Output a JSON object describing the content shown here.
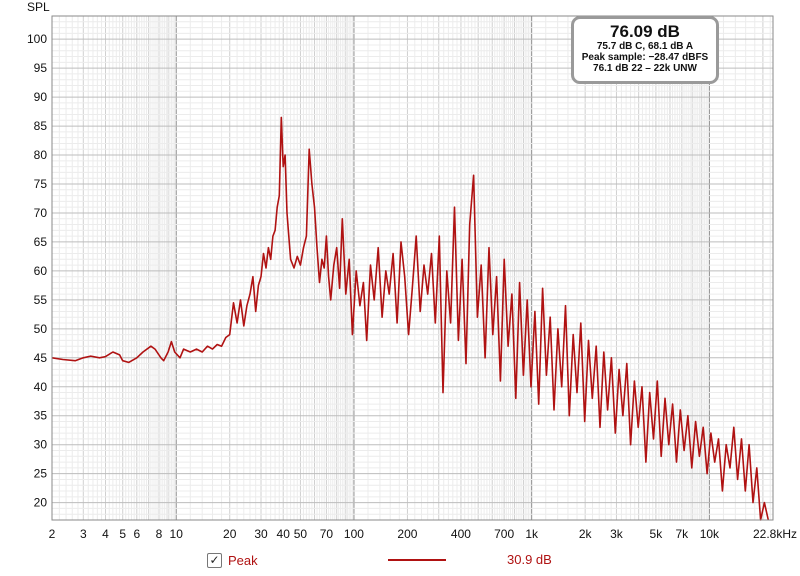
{
  "chart_data": {
    "type": "line",
    "ylabel": "SPL",
    "xlabel": "",
    "xscale": "log",
    "xlim": [
      2,
      22800
    ],
    "ylim": [
      17,
      104
    ],
    "y_ticks": [
      20,
      25,
      30,
      35,
      40,
      45,
      50,
      55,
      60,
      65,
      70,
      75,
      80,
      85,
      90,
      95,
      100
    ],
    "x_ticks": [
      {
        "v": 2,
        "label": "2"
      },
      {
        "v": 3,
        "label": "3"
      },
      {
        "v": 4,
        "label": "4"
      },
      {
        "v": 5,
        "label": "5"
      },
      {
        "v": 6,
        "label": "6"
      },
      {
        "v": 8,
        "label": "8"
      },
      {
        "v": 10,
        "label": "10"
      },
      {
        "v": 20,
        "label": "20"
      },
      {
        "v": 30,
        "label": "30"
      },
      {
        "v": 40,
        "label": "40"
      },
      {
        "v": 50,
        "label": "50"
      },
      {
        "v": 70,
        "label": "70"
      },
      {
        "v": 100,
        "label": "100"
      },
      {
        "v": 200,
        "label": "200"
      },
      {
        "v": 400,
        "label": "400"
      },
      {
        "v": 700,
        "label": "700"
      },
      {
        "v": 1000,
        "label": "1k"
      },
      {
        "v": 2000,
        "label": "2k"
      },
      {
        "v": 3000,
        "label": "3k"
      },
      {
        "v": 5000,
        "label": "5k"
      },
      {
        "v": 7000,
        "label": "7k"
      },
      {
        "v": 10000,
        "label": "10k"
      },
      {
        "v": 22800,
        "label": "22.8kHz"
      }
    ],
    "grid": true,
    "series": [
      {
        "name": "Peak",
        "color": "#b01212",
        "points": [
          [
            2,
            45.0
          ],
          [
            2.3,
            44.7
          ],
          [
            2.7,
            44.5
          ],
          [
            3.0,
            45.0
          ],
          [
            3.3,
            45.3
          ],
          [
            3.7,
            45.0
          ],
          [
            4.0,
            45.2
          ],
          [
            4.4,
            46.0
          ],
          [
            4.8,
            45.5
          ],
          [
            5.0,
            44.5
          ],
          [
            5.4,
            44.2
          ],
          [
            6.0,
            45.0
          ],
          [
            6.5,
            46.0
          ],
          [
            7.2,
            47.0
          ],
          [
            7.6,
            46.5
          ],
          [
            8.2,
            45.0
          ],
          [
            8.5,
            44.5
          ],
          [
            9.0,
            46.0
          ],
          [
            9.4,
            47.8
          ],
          [
            9.8,
            46.0
          ],
          [
            10.5,
            45.0
          ],
          [
            11.0,
            46.5
          ],
          [
            12.0,
            46.0
          ],
          [
            13.0,
            46.5
          ],
          [
            14.0,
            46.0
          ],
          [
            15.0,
            47.0
          ],
          [
            16.0,
            46.5
          ],
          [
            17.0,
            47.3
          ],
          [
            18.0,
            47.0
          ],
          [
            19.0,
            48.5
          ],
          [
            20.0,
            49.0
          ],
          [
            21.0,
            54.5
          ],
          [
            22.0,
            51.0
          ],
          [
            23.0,
            55.0
          ],
          [
            24.0,
            50.5
          ],
          [
            25.0,
            54.0
          ],
          [
            26.0,
            56.0
          ],
          [
            27.0,
            59.0
          ],
          [
            28.0,
            53.0
          ],
          [
            29.0,
            57.5
          ],
          [
            30.0,
            59.0
          ],
          [
            31.0,
            63.0
          ],
          [
            32.0,
            60.5
          ],
          [
            33.0,
            64.0
          ],
          [
            34.0,
            62.0
          ],
          [
            35.0,
            66.0
          ],
          [
            36.0,
            67.0
          ],
          [
            37.0,
            71.0
          ],
          [
            38.0,
            73.0
          ],
          [
            39.0,
            86.5
          ],
          [
            40.0,
            78.0
          ],
          [
            41.0,
            80.0
          ],
          [
            42.0,
            70.0
          ],
          [
            44.0,
            62.0
          ],
          [
            46.0,
            60.5
          ],
          [
            48.0,
            62.5
          ],
          [
            50.0,
            61.0
          ],
          [
            52.0,
            64.0
          ],
          [
            54.0,
            66.0
          ],
          [
            56.0,
            81.0
          ],
          [
            58.0,
            75.0
          ],
          [
            60.0,
            71.0
          ],
          [
            62.0,
            64.0
          ],
          [
            64.0,
            58.0
          ],
          [
            66.0,
            62.0
          ],
          [
            68.0,
            60.5
          ],
          [
            70.0,
            66.0
          ],
          [
            72.0,
            59.0
          ],
          [
            74.0,
            55.0
          ],
          [
            77.0,
            61.0
          ],
          [
            80.0,
            64.0
          ],
          [
            83.0,
            57.0
          ],
          [
            86.0,
            69.0
          ],
          [
            90.0,
            56.0
          ],
          [
            94.0,
            62.0
          ],
          [
            98.0,
            49.0
          ],
          [
            103.0,
            60.0
          ],
          [
            108.0,
            54.0
          ],
          [
            113.0,
            58.0
          ],
          [
            118.0,
            48.0
          ],
          [
            124.0,
            61.0
          ],
          [
            130.0,
            55.0
          ],
          [
            137.0,
            64.0
          ],
          [
            144.0,
            52.0
          ],
          [
            151.0,
            60.0
          ],
          [
            158.0,
            56.0
          ],
          [
            166.0,
            63.0
          ],
          [
            175.0,
            51.0
          ],
          [
            184.0,
            65.0
          ],
          [
            193.0,
            59.0
          ],
          [
            203.0,
            49.0
          ],
          [
            213.0,
            57.0
          ],
          [
            224.0,
            66.0
          ],
          [
            236.0,
            53.0
          ],
          [
            248.0,
            61.0
          ],
          [
            260.0,
            56.0
          ],
          [
            273.0,
            63.0
          ],
          [
            287.0,
            51.0
          ],
          [
            302.0,
            66.0
          ],
          [
            317.0,
            39.0
          ],
          [
            333.0,
            60.0
          ],
          [
            350.0,
            51.0
          ],
          [
            368.0,
            71.0
          ],
          [
            387.0,
            48.0
          ],
          [
            406.0,
            62.0
          ],
          [
            427.0,
            44.0
          ],
          [
            448.0,
            68.0
          ],
          [
            471.0,
            76.5
          ],
          [
            495.0,
            52.0
          ],
          [
            520.0,
            61.0
          ],
          [
            547.0,
            45.0
          ],
          [
            575.0,
            64.0
          ],
          [
            604.0,
            49.0
          ],
          [
            635.0,
            59.0
          ],
          [
            667.0,
            41.0
          ],
          [
            701.0,
            62.0
          ],
          [
            737.0,
            47.0
          ],
          [
            774.0,
            56.0
          ],
          [
            814.0,
            38.0
          ],
          [
            855.0,
            58.0
          ],
          [
            899.0,
            42.0
          ],
          [
            944.0,
            55.0
          ],
          [
            992.0,
            40.0
          ],
          [
            1043.0,
            53.0
          ],
          [
            1096.0,
            37.0
          ],
          [
            1152.0,
            57.0
          ],
          [
            1210.0,
            42.0
          ],
          [
            1272.0,
            52.0
          ],
          [
            1336.0,
            36.0
          ],
          [
            1404.0,
            50.0
          ],
          [
            1476.0,
            40.0
          ],
          [
            1551.0,
            54.0
          ],
          [
            1629.0,
            35.0
          ],
          [
            1712.0,
            49.0
          ],
          [
            1799.0,
            39.0
          ],
          [
            1891.0,
            51.0
          ],
          [
            1987.0,
            34.0
          ],
          [
            2088.0,
            48.0
          ],
          [
            2194.0,
            38.0
          ],
          [
            2306.0,
            47.0
          ],
          [
            2423.0,
            33.0
          ],
          [
            2546.0,
            46.0
          ],
          [
            2675.0,
            36.0
          ],
          [
            2811.0,
            45.0
          ],
          [
            2954.0,
            32.0
          ],
          [
            3104.0,
            43.0
          ],
          [
            3262.0,
            35.0
          ],
          [
            3428.0,
            44.0
          ],
          [
            3602.0,
            30.0
          ],
          [
            3785.0,
            41.0
          ],
          [
            3977.0,
            33.0
          ],
          [
            4179.0,
            40.0
          ],
          [
            4391.0,
            27.0
          ],
          [
            4614.0,
            39.0
          ],
          [
            4849.0,
            31.0
          ],
          [
            5095.0,
            41.0
          ],
          [
            5354.0,
            28.0
          ],
          [
            5626.0,
            38.0
          ],
          [
            5911.0,
            30.0
          ],
          [
            6212.0,
            37.0
          ],
          [
            6527.0,
            27.0
          ],
          [
            6859.0,
            36.0
          ],
          [
            7207.0,
            29.0
          ],
          [
            7573.0,
            35.0
          ],
          [
            7958.0,
            26.0
          ],
          [
            8362.0,
            34.0
          ],
          [
            8787.0,
            28.0
          ],
          [
            9233.0,
            33.0
          ],
          [
            9702.0,
            25.0
          ],
          [
            10195.0,
            32.0
          ],
          [
            10713.0,
            27.0
          ],
          [
            11257.0,
            31.0
          ],
          [
            11829.0,
            22.0
          ],
          [
            12430.0,
            30.0
          ],
          [
            13061.0,
            26.0
          ],
          [
            13725.0,
            33.0
          ],
          [
            14422.0,
            24.0
          ],
          [
            15155.0,
            31.0
          ],
          [
            15925.0,
            22.0
          ],
          [
            16734.0,
            30.0
          ],
          [
            17585.0,
            20.0
          ],
          [
            18478.0,
            26.0
          ],
          [
            19417.0,
            17.0
          ],
          [
            20404.0,
            20.0
          ],
          [
            21441.0,
            17.0
          ]
        ]
      }
    ]
  },
  "readout": {
    "main": "76.09 dB",
    "line1": "75.7 dB C, 68.1 dB A",
    "line2": "Peak sample: −28.47 dBFS",
    "line3": "76.1 dB 22 – 22k UNW"
  },
  "legend": {
    "checkbox_mark": "✓",
    "series_label": "Peak",
    "value": "30.9 dB"
  }
}
